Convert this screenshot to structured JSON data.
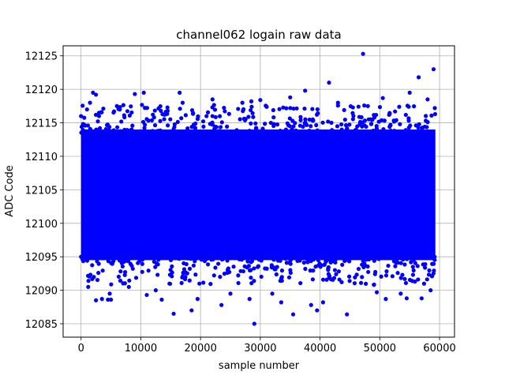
{
  "chart_data": {
    "type": "scatter",
    "title": "channel062 logain raw data",
    "xlabel": "sample number",
    "ylabel": "ADC Code",
    "xlim": [
      -3000,
      62500
    ],
    "ylim": [
      12083,
      12126.5
    ],
    "x_ticks": [
      0,
      10000,
      20000,
      30000,
      40000,
      50000,
      60000
    ],
    "y_ticks": [
      12085,
      12090,
      12095,
      12100,
      12105,
      12110,
      12115,
      12120,
      12125
    ],
    "grid": true,
    "marker_color": "#0000ff",
    "series": [
      {
        "n_samples": 59300,
        "dense_band": [
          12094.5,
          12114
        ],
        "points": [
          [
            0,
            12095
          ],
          [
            0,
            12116
          ],
          [
            1000,
            12117
          ],
          [
            1500,
            12118
          ],
          [
            2000,
            12119.5
          ],
          [
            2500,
            12119.2
          ],
          [
            3000,
            12116.5
          ],
          [
            1200,
            12090.5
          ],
          [
            2500,
            12088.5
          ],
          [
            3500,
            12088.7
          ],
          [
            4500,
            12088.6
          ],
          [
            5000,
            12088.6
          ],
          [
            4800,
            12089.5
          ],
          [
            6000,
            12117.5
          ],
          [
            9000,
            12119.3
          ],
          [
            10500,
            12119.5
          ],
          [
            8000,
            12090.5
          ],
          [
            11000,
            12089.3
          ],
          [
            12500,
            12090
          ],
          [
            13500,
            12088.6
          ],
          [
            15500,
            12086.5
          ],
          [
            16500,
            12119.5
          ],
          [
            17000,
            12118
          ],
          [
            18500,
            12087
          ],
          [
            19500,
            12088.7
          ],
          [
            21000,
            12116
          ],
          [
            22000,
            12118.5
          ],
          [
            23500,
            12087.8
          ],
          [
            25000,
            12089.5
          ],
          [
            27000,
            12118
          ],
          [
            28500,
            12118.2
          ],
          [
            29000,
            12085
          ],
          [
            28200,
            12088.7
          ],
          [
            30000,
            12118.4
          ],
          [
            32000,
            12089.5
          ],
          [
            33500,
            12088.2
          ],
          [
            35000,
            12118.8
          ],
          [
            35500,
            12086.4
          ],
          [
            37500,
            12119.8
          ],
          [
            38500,
            12087.8
          ],
          [
            39500,
            12087
          ],
          [
            40500,
            12088.2
          ],
          [
            41500,
            12121
          ],
          [
            43000,
            12118
          ],
          [
            44500,
            12086.4
          ],
          [
            45500,
            12117.3
          ],
          [
            47200,
            12125.3
          ],
          [
            48000,
            12117.5
          ],
          [
            49500,
            12089.7
          ],
          [
            50500,
            12118.7
          ],
          [
            51000,
            12088.7
          ],
          [
            53500,
            12089.5
          ],
          [
            54500,
            12088.8
          ],
          [
            55000,
            12119.5
          ],
          [
            56500,
            12121.8
          ],
          [
            57000,
            12088.8
          ],
          [
            58000,
            12118.5
          ],
          [
            59000,
            12123
          ],
          [
            58500,
            12090
          ],
          [
            59200,
            12117.2
          ]
        ]
      }
    ]
  }
}
